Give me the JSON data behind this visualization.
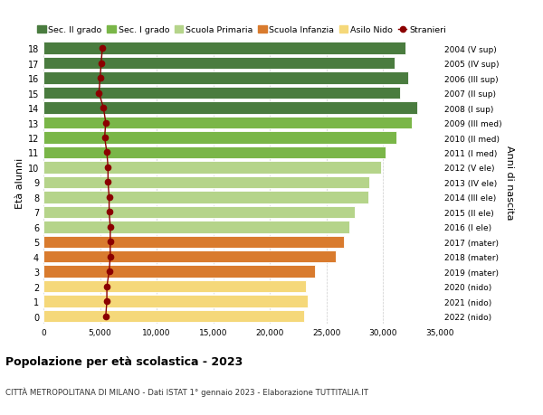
{
  "ages": [
    18,
    17,
    16,
    15,
    14,
    13,
    12,
    11,
    10,
    9,
    8,
    7,
    6,
    5,
    4,
    3,
    2,
    1,
    0
  ],
  "right_labels": [
    "2004 (V sup)",
    "2005 (IV sup)",
    "2006 (III sup)",
    "2007 (II sup)",
    "2008 (I sup)",
    "2009 (III med)",
    "2010 (II med)",
    "2011 (I med)",
    "2012 (V ele)",
    "2013 (IV ele)",
    "2014 (III ele)",
    "2015 (II ele)",
    "2016 (I ele)",
    "2017 (mater)",
    "2018 (mater)",
    "2019 (mater)",
    "2020 (nido)",
    "2021 (nido)",
    "2022 (nido)"
  ],
  "bar_values": [
    32000,
    31000,
    32200,
    31500,
    33000,
    32500,
    31200,
    30200,
    29800,
    28800,
    28700,
    27500,
    27000,
    26500,
    25800,
    24000,
    23200,
    23300,
    23000
  ],
  "stranieri_values": [
    5200,
    5100,
    5000,
    4900,
    5300,
    5500,
    5400,
    5600,
    5700,
    5700,
    5800,
    5800,
    5900,
    5900,
    5900,
    5800,
    5600,
    5600,
    5500
  ],
  "bar_colors": [
    "#4a7c3f",
    "#4a7c3f",
    "#4a7c3f",
    "#4a7c3f",
    "#4a7c3f",
    "#7ab648",
    "#7ab648",
    "#7ab648",
    "#b5d48a",
    "#b5d48a",
    "#b5d48a",
    "#b5d48a",
    "#b5d48a",
    "#d97b2e",
    "#d97b2e",
    "#d97b2e",
    "#f5d87a",
    "#f5d87a",
    "#f5d87a"
  ],
  "legend_labels": [
    "Sec. II grado",
    "Sec. I grado",
    "Scuola Primaria",
    "Scuola Infanzia",
    "Asilo Nido",
    "Stranieri"
  ],
  "legend_colors": [
    "#4a7c3f",
    "#7ab648",
    "#b5d48a",
    "#d97b2e",
    "#f5d87a",
    "#8b0000"
  ],
  "stranieri_color": "#8b0000",
  "title": "Popolazione per età scolastica - 2023",
  "subtitle": "CITTÀ METROPOLITANA DI MILANO - Dati ISTAT 1° gennaio 2023 - Elaborazione TUTTITALIA.IT",
  "ylabel": "Età alunni",
  "right_ylabel": "Anni di nascita",
  "xlim": [
    0,
    35000
  ],
  "background_color": "#ffffff",
  "grid_color": "#cccccc"
}
